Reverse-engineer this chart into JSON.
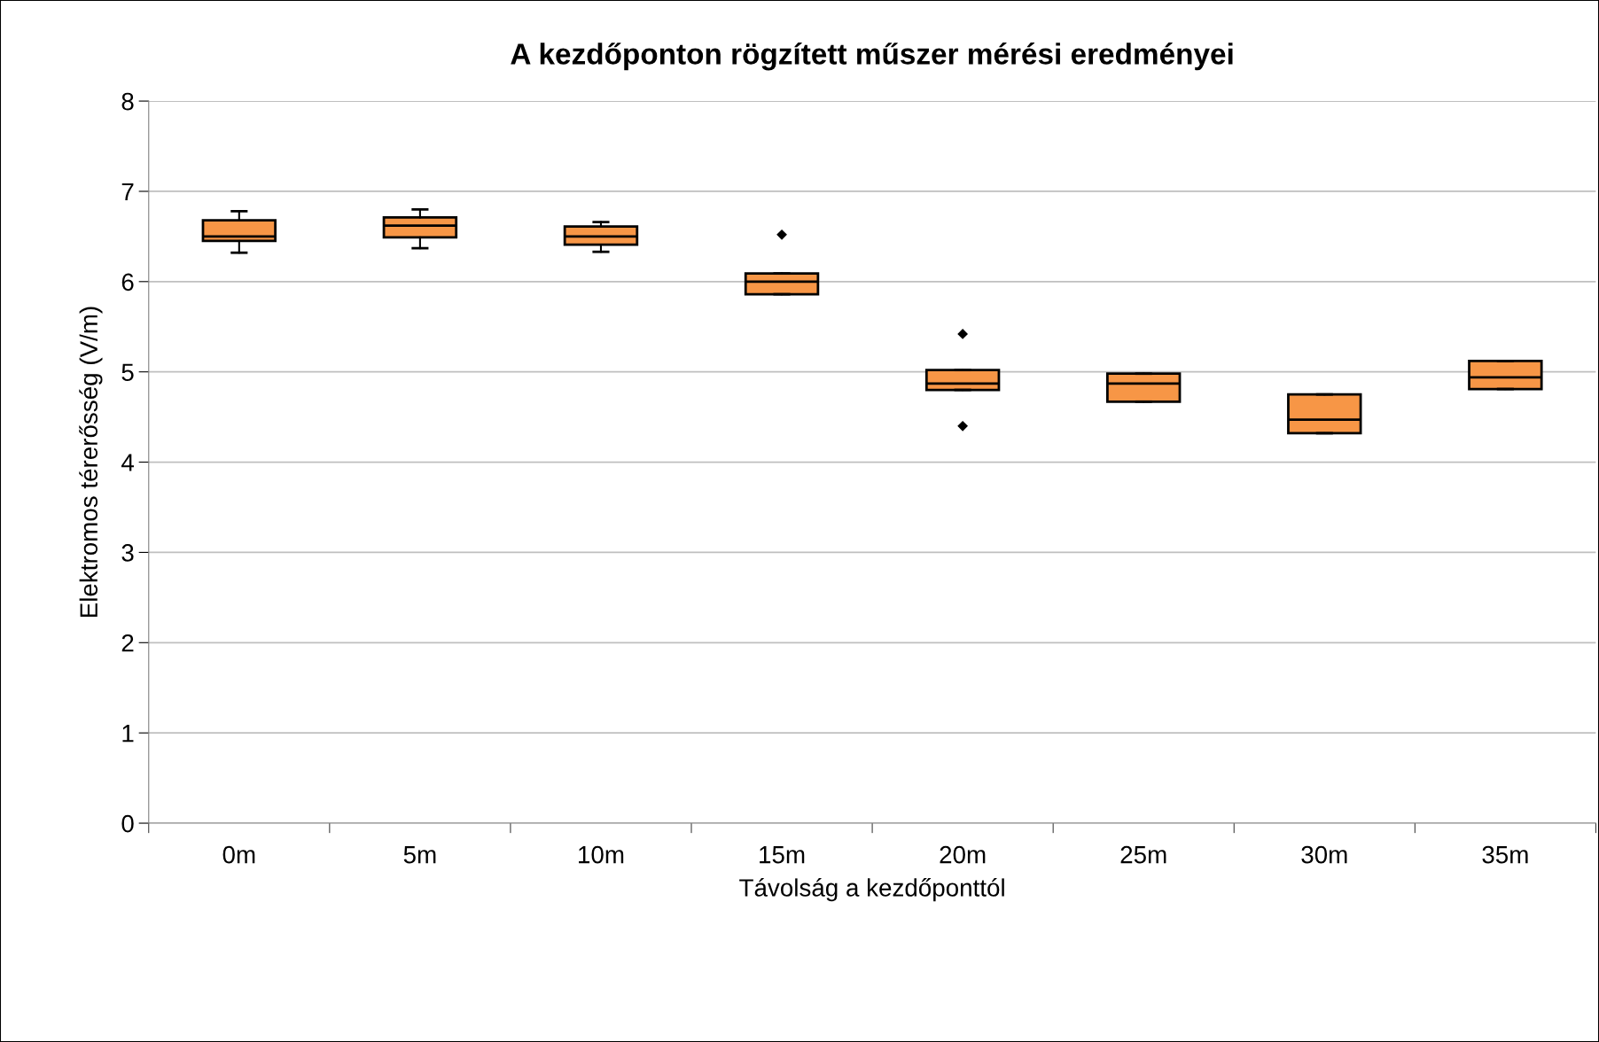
{
  "chart_data": {
    "type": "box",
    "title": "A kezdőponton rögzített műszer mérési eredményei",
    "xlabel": "Távolság a kezdőponttól",
    "ylabel": "Elektromos térerősség (V/m)",
    "categories": [
      "0m",
      "5m",
      "10m",
      "15m",
      "20m",
      "25m",
      "30m",
      "35m"
    ],
    "color": "#f79646",
    "marker": "diamond",
    "grid": "y",
    "ylim": [
      0,
      8
    ],
    "yticks": [
      0,
      1,
      2,
      3,
      4,
      5,
      6,
      7,
      8
    ],
    "boxes": [
      {
        "low": 6.32,
        "q1": 6.45,
        "median": 6.5,
        "q3": 6.68,
        "high": 6.78
      },
      {
        "low": 6.37,
        "q1": 6.49,
        "median": 6.62,
        "q3": 6.71,
        "high": 6.8
      },
      {
        "low": 6.33,
        "q1": 6.41,
        "median": 6.5,
        "q3": 6.61,
        "high": 6.66
      },
      {
        "low": 5.86,
        "q1": 5.86,
        "median": 6.0,
        "q3": 6.09,
        "high": 6.09,
        "outliers": [
          6.52
        ]
      },
      {
        "low": 4.8,
        "q1": 4.8,
        "median": 4.87,
        "q3": 5.02,
        "high": 5.02,
        "outliers": [
          5.42,
          4.4
        ]
      },
      {
        "low": 4.67,
        "q1": 4.67,
        "median": 4.87,
        "q3": 4.98,
        "high": 4.98
      },
      {
        "low": 4.32,
        "q1": 4.32,
        "median": 4.47,
        "q3": 4.75,
        "high": 4.75
      },
      {
        "low": 4.81,
        "q1": 4.81,
        "median": 4.94,
        "q3": 5.12,
        "high": 5.12
      }
    ]
  }
}
